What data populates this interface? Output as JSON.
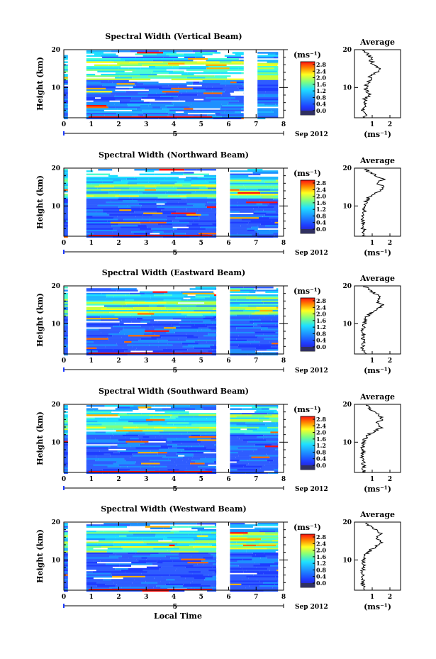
{
  "chart_data": [
    {
      "type": "heatmap",
      "title": "Spectral Width (Vertical Beam)",
      "ylabel": "Height (km)",
      "xlim": [
        0,
        8
      ],
      "ylim": [
        2,
        20
      ],
      "x_ticks": [
        "0",
        "1",
        "2",
        "3",
        "4",
        "5",
        "6",
        "7",
        "8"
      ],
      "y_ticks": [
        "10",
        "20"
      ],
      "date_label": "5",
      "month_label": "Sep 2012",
      "data_gaps": [
        [
          0.15,
          0.82
        ],
        [
          6.55,
          7.05
        ]
      ],
      "colorbar": {
        "label": "(ms⁻¹)",
        "ticks": [
          "2.8",
          "2.4",
          "2.0",
          "1.6",
          "1.2",
          "0.8",
          "0.4",
          "0.0"
        ],
        "range": [
          0,
          2.8
        ]
      },
      "average": {
        "title": "Average",
        "xlabel": "(ms⁻¹)",
        "x_ticks": [
          "1",
          "2"
        ],
        "y_ticks": [
          "10",
          "20"
        ],
        "xlim": [
          0,
          2.6
        ],
        "height": [
          2,
          3,
          4,
          5,
          6,
          7,
          8,
          9,
          10,
          11,
          12,
          13,
          14,
          15,
          16,
          17,
          18,
          19,
          20
        ],
        "width": [
          0.55,
          0.7,
          0.45,
          0.6,
          0.65,
          0.55,
          0.9,
          0.7,
          0.6,
          0.75,
          0.85,
          0.9,
          1.25,
          1.35,
          1.1,
          0.95,
          0.9,
          0.7,
          0.5
        ]
      }
    },
    {
      "type": "heatmap",
      "title": "Spectral Width (Northward Beam)",
      "ylabel": "Height (km)",
      "xlim": [
        0,
        8
      ],
      "ylim": [
        2,
        20
      ],
      "x_ticks": [
        "0",
        "1",
        "2",
        "3",
        "4",
        "5",
        "6",
        "7",
        "8"
      ],
      "y_ticks": [
        "10",
        "20"
      ],
      "date_label": "5",
      "month_label": "Sep 2012",
      "data_gaps": [
        [
          0.15,
          0.82
        ],
        [
          5.55,
          6.05
        ]
      ],
      "colorbar": {
        "label": "(ms⁻¹)",
        "ticks": [
          "2.8",
          "2.4",
          "2.0",
          "1.6",
          "1.2",
          "0.8",
          "0.4",
          "0.0"
        ],
        "range": [
          0,
          2.8
        ]
      },
      "average": {
        "title": "Average",
        "xlabel": "(ms⁻¹)",
        "x_ticks": [
          "1",
          "2"
        ],
        "y_ticks": [
          "10",
          "20"
        ],
        "xlim": [
          0,
          2.6
        ],
        "height": [
          2,
          3,
          4,
          5,
          6,
          7,
          8,
          9,
          10,
          11,
          12,
          13,
          14,
          15,
          16,
          17,
          18,
          19,
          20
        ],
        "width": [
          0.6,
          0.55,
          0.5,
          0.45,
          0.5,
          0.45,
          0.5,
          0.55,
          0.6,
          0.65,
          0.75,
          1.05,
          1.4,
          1.7,
          1.3,
          1.6,
          1.25,
          0.8,
          0.6
        ]
      }
    },
    {
      "type": "heatmap",
      "title": "Spectral Width (Eastward Beam)",
      "ylabel": "Height (km)",
      "xlim": [
        0,
        8
      ],
      "ylim": [
        2,
        20
      ],
      "x_ticks": [
        "0",
        "1",
        "2",
        "3",
        "4",
        "5",
        "6",
        "7",
        "8"
      ],
      "y_ticks": [
        "10",
        "20"
      ],
      "date_label": "5",
      "month_label": "Sep 2012",
      "data_gaps": [
        [
          0.15,
          0.82
        ],
        [
          5.55,
          6.05
        ]
      ],
      "colorbar": {
        "label": "(ms⁻¹)",
        "ticks": [
          "2.8",
          "2.4",
          "2.0",
          "1.6",
          "1.2",
          "0.8",
          "0.4",
          "0.0"
        ],
        "range": [
          0,
          2.8
        ]
      },
      "average": {
        "title": "Average",
        "xlabel": "(ms⁻¹)",
        "x_ticks": [
          "1",
          "2"
        ],
        "y_ticks": [
          "10",
          "20"
        ],
        "xlim": [
          0,
          2.6
        ],
        "height": [
          2,
          3,
          4,
          5,
          6,
          7,
          8,
          9,
          10,
          11,
          12,
          13,
          14,
          15,
          16,
          17,
          18,
          19,
          20
        ],
        "width": [
          0.55,
          0.5,
          0.45,
          0.5,
          0.45,
          0.5,
          0.45,
          0.5,
          0.55,
          0.6,
          0.7,
          1.0,
          1.3,
          1.6,
          1.25,
          1.5,
          1.15,
          0.8,
          0.55
        ]
      }
    },
    {
      "type": "heatmap",
      "title": "Spectral Width (Southward Beam)",
      "ylabel": "Height (km)",
      "xlim": [
        0,
        8
      ],
      "ylim": [
        2,
        20
      ],
      "x_ticks": [
        "0",
        "1",
        "2",
        "3",
        "4",
        "5",
        "6",
        "7",
        "8"
      ],
      "y_ticks": [
        "10",
        "20"
      ],
      "date_label": "5",
      "month_label": "Sep 2012",
      "data_gaps": [
        [
          0.15,
          0.82
        ],
        [
          5.55,
          6.05
        ]
      ],
      "colorbar": {
        "label": "(ms⁻¹)",
        "ticks": [
          "2.8",
          "2.4",
          "2.0",
          "1.6",
          "1.2",
          "0.8",
          "0.4",
          "0.0"
        ],
        "range": [
          0,
          2.8
        ]
      },
      "average": {
        "title": "Average",
        "xlabel": "(ms⁻¹)",
        "x_ticks": [
          "1",
          "2"
        ],
        "y_ticks": [
          "10",
          "20"
        ],
        "xlim": [
          0,
          2.6
        ],
        "height": [
          2,
          3,
          4,
          5,
          6,
          7,
          8,
          9,
          10,
          11,
          12,
          13,
          14,
          15,
          16,
          17,
          18,
          19,
          20
        ],
        "width": [
          0.55,
          0.5,
          0.5,
          0.55,
          0.45,
          0.5,
          0.45,
          0.5,
          0.55,
          0.6,
          0.8,
          1.2,
          1.55,
          1.25,
          1.6,
          1.4,
          1.1,
          0.85,
          0.6
        ]
      }
    },
    {
      "type": "heatmap",
      "title": "Spectral Width (Westward Beam)",
      "ylabel": "Height (km)",
      "xlim": [
        0,
        8
      ],
      "ylim": [
        2,
        20
      ],
      "x_ticks": [
        "0",
        "1",
        "2",
        "3",
        "4",
        "5",
        "6",
        "7",
        "8"
      ],
      "y_ticks": [
        "10",
        "20"
      ],
      "date_label": "5",
      "month_label": "Sep 2012",
      "xlabel": "Local Time",
      "data_gaps": [
        [
          0.15,
          0.82
        ],
        [
          5.55,
          6.05
        ]
      ],
      "colorbar": {
        "label": "(ms⁻¹)",
        "ticks": [
          "2.8",
          "2.4",
          "2.0",
          "1.6",
          "1.2",
          "0.8",
          "0.4",
          "0.0"
        ],
        "range": [
          0,
          2.8
        ]
      },
      "average": {
        "title": "Average",
        "xlabel": "(ms⁻¹)",
        "x_ticks": [
          "1",
          "2"
        ],
        "y_ticks": [
          "10",
          "20"
        ],
        "xlim": [
          0,
          2.6
        ],
        "height": [
          2,
          3,
          4,
          5,
          6,
          7,
          8,
          9,
          10,
          11,
          12,
          13,
          14,
          15,
          16,
          17,
          18,
          19,
          20
        ],
        "width": [
          0.55,
          0.5,
          0.5,
          0.45,
          0.5,
          0.45,
          0.5,
          0.5,
          0.55,
          0.6,
          0.75,
          1.05,
          1.35,
          1.55,
          1.2,
          1.5,
          1.2,
          0.85,
          0.6
        ]
      }
    }
  ]
}
